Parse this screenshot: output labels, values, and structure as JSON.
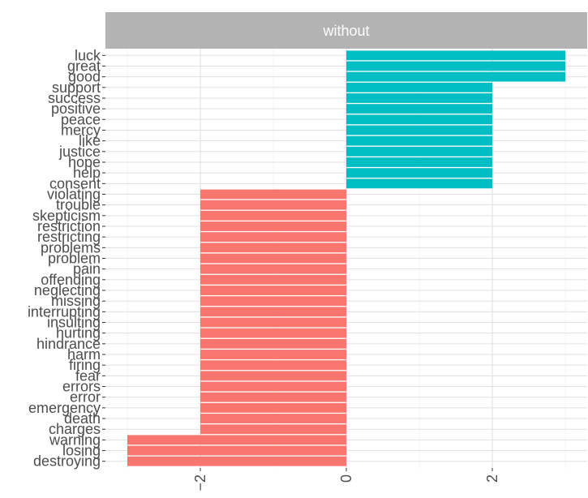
{
  "chart_data": {
    "type": "bar",
    "orientation": "horizontal",
    "facet": "without",
    "categories": [
      "luck",
      "great",
      "good",
      "support",
      "success",
      "positive",
      "peace",
      "mercy",
      "like",
      "justice",
      "hope",
      "help",
      "consent",
      "violating",
      "trouble",
      "skepticism",
      "restriction",
      "restricting",
      "problems",
      "problem",
      "pain",
      "offending",
      "neglecting",
      "missing",
      "interrupting",
      "insulting",
      "hurting",
      "hindrance",
      "harm",
      "firing",
      "fear",
      "errors",
      "error",
      "emergency",
      "death",
      "charges",
      "warning",
      "losing",
      "destroying"
    ],
    "values": [
      3,
      3,
      3,
      2,
      2,
      2,
      2,
      2,
      2,
      2,
      2,
      2,
      2,
      -2,
      -2,
      -2,
      -2,
      -2,
      -2,
      -2,
      -2,
      -2,
      -2,
      -2,
      -2,
      -2,
      -2,
      -2,
      -2,
      -2,
      -2,
      -2,
      -2,
      -2,
      -2,
      -2,
      -3,
      -3,
      -3
    ],
    "xlim": [
      -3.3,
      3.3
    ],
    "x_ticks": [
      -2,
      0,
      2
    ],
    "x_tick_labels": [
      "−2",
      "0",
      "2"
    ],
    "colors": {
      "positive": "#00BFC4",
      "negative": "#F8766D",
      "strip": "#B3B3B3",
      "grid": "#E0E0E0"
    },
    "grid": true,
    "legend": "none"
  }
}
